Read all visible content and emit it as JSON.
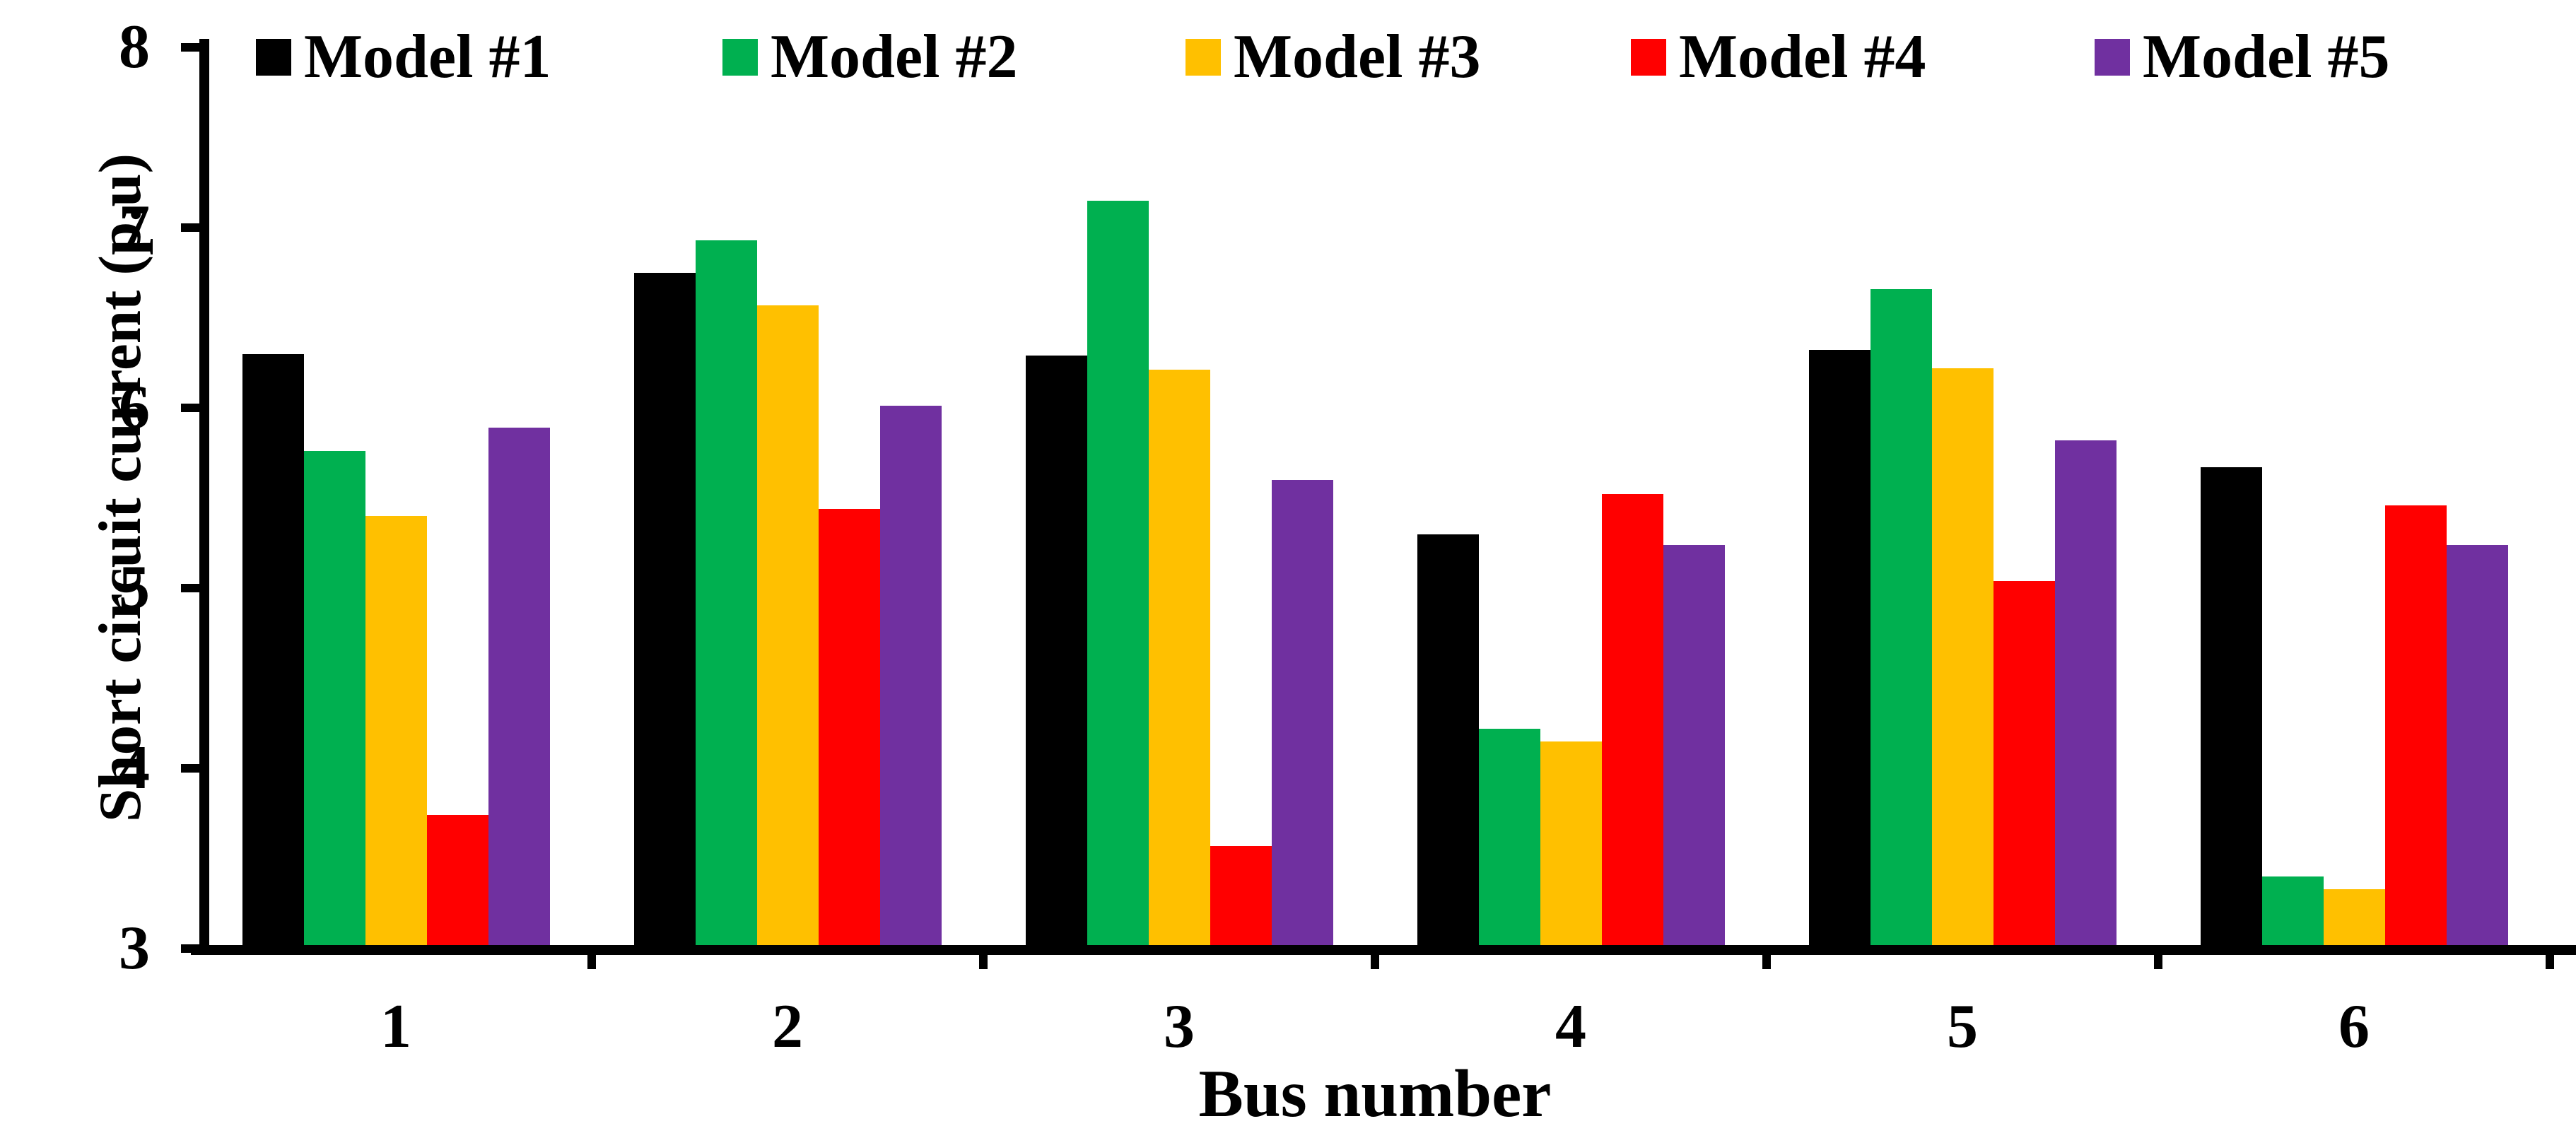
{
  "chart_data": {
    "type": "bar",
    "title": "",
    "xlabel": "Bus number",
    "ylabel": "Short circuit current (p.u)",
    "ylim": [
      3,
      8
    ],
    "yticks": [
      3,
      4,
      5,
      6,
      7,
      8
    ],
    "grid": false,
    "legend_position": "top",
    "categories": [
      "1",
      "2",
      "3",
      "4",
      "5",
      "6"
    ],
    "series": [
      {
        "name": "Model #1",
        "color": "#000000",
        "values": [
          6.3,
          6.75,
          6.29,
          5.3,
          6.32,
          5.67
        ]
      },
      {
        "name": "Model #2",
        "color": "#00B050",
        "values": [
          5.76,
          6.93,
          7.15,
          4.22,
          6.66,
          3.4
        ]
      },
      {
        "name": "Model #3",
        "color": "#FFC000",
        "values": [
          5.4,
          6.57,
          6.21,
          4.15,
          6.22,
          3.33
        ]
      },
      {
        "name": "Model #4",
        "color": "#FF0000",
        "values": [
          3.74,
          5.44,
          3.57,
          5.52,
          5.04,
          5.46
        ]
      },
      {
        "name": "Model #5",
        "color": "#7030A0",
        "values": [
          5.89,
          6.01,
          5.6,
          5.24,
          5.82,
          5.24
        ]
      }
    ],
    "axis_color": "#000000",
    "background_color": "#FFFFFF"
  }
}
